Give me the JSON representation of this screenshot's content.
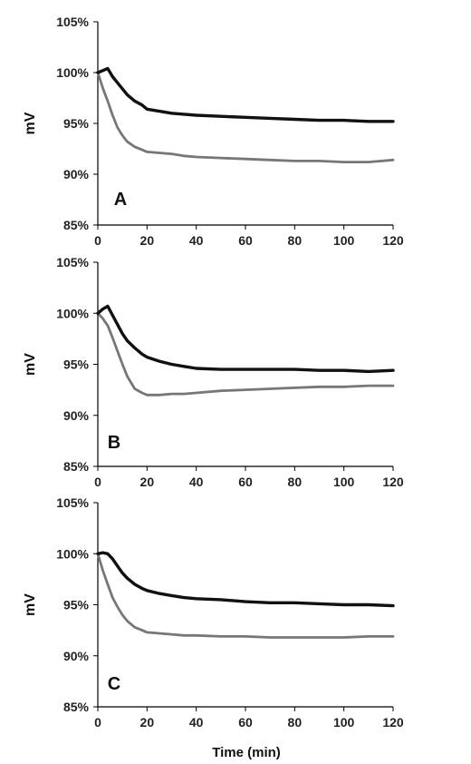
{
  "figure": {
    "xlabel": "Time (min)"
  },
  "chart_data": [
    {
      "type": "line",
      "panel_label": "A",
      "ylabel": "mV",
      "xlim": [
        0,
        120
      ],
      "ylim": [
        85,
        105
      ],
      "xticks": [
        0,
        20,
        40,
        60,
        80,
        100,
        120
      ],
      "yticks": [
        85,
        90,
        95,
        100,
        105
      ],
      "ytick_labels": [
        "85%",
        "90%",
        "95%",
        "100%",
        "105%"
      ],
      "grid": false,
      "series": [
        {
          "color": "#111111",
          "x": [
            0,
            2,
            4,
            6,
            8,
            10,
            12,
            15,
            18,
            20,
            25,
            30,
            35,
            40,
            50,
            60,
            70,
            80,
            90,
            100,
            110,
            120
          ],
          "y": [
            100,
            100.2,
            100.4,
            99.6,
            99.0,
            98.4,
            97.8,
            97.2,
            96.8,
            96.4,
            96.2,
            96.0,
            95.9,
            95.8,
            95.7,
            95.6,
            95.5,
            95.4,
            95.3,
            95.3,
            95.2,
            95.2
          ]
        },
        {
          "color": "#777777",
          "x": [
            0,
            2,
            4,
            6,
            8,
            10,
            12,
            15,
            18,
            20,
            25,
            30,
            35,
            40,
            50,
            60,
            70,
            80,
            90,
            100,
            110,
            120
          ],
          "y": [
            100,
            98.5,
            97.2,
            95.8,
            94.6,
            93.8,
            93.2,
            92.7,
            92.4,
            92.2,
            92.1,
            92.0,
            91.8,
            91.7,
            91.6,
            91.5,
            91.4,
            91.3,
            91.3,
            91.2,
            91.2,
            91.4
          ]
        }
      ]
    },
    {
      "type": "line",
      "panel_label": "B",
      "ylabel": "mV",
      "xlim": [
        0,
        120
      ],
      "ylim": [
        85,
        105
      ],
      "xticks": [
        0,
        20,
        40,
        60,
        80,
        100,
        120
      ],
      "yticks": [
        85,
        90,
        95,
        100,
        105
      ],
      "ytick_labels": [
        "85%",
        "90%",
        "95%",
        "100%",
        "105%"
      ],
      "grid": false,
      "series": [
        {
          "color": "#111111",
          "x": [
            0,
            2,
            4,
            6,
            8,
            10,
            12,
            15,
            18,
            20,
            25,
            30,
            35,
            40,
            50,
            60,
            70,
            80,
            90,
            100,
            110,
            120
          ],
          "y": [
            100,
            100.4,
            100.7,
            99.8,
            98.9,
            98.0,
            97.3,
            96.6,
            96.0,
            95.7,
            95.3,
            95.0,
            94.8,
            94.6,
            94.5,
            94.5,
            94.5,
            94.5,
            94.4,
            94.4,
            94.3,
            94.4
          ]
        },
        {
          "color": "#777777",
          "x": [
            0,
            2,
            4,
            6,
            8,
            10,
            12,
            15,
            18,
            20,
            25,
            30,
            35,
            40,
            50,
            60,
            70,
            80,
            90,
            100,
            110,
            120
          ],
          "y": [
            100,
            99.5,
            98.8,
            97.6,
            96.3,
            95.0,
            93.8,
            92.6,
            92.2,
            92.0,
            92.0,
            92.1,
            92.1,
            92.2,
            92.4,
            92.5,
            92.6,
            92.7,
            92.8,
            92.8,
            92.9,
            92.9
          ]
        }
      ]
    },
    {
      "type": "line",
      "panel_label": "C",
      "ylabel": "mV",
      "xlabel": "Time (min)",
      "xlim": [
        0,
        120
      ],
      "ylim": [
        85,
        105
      ],
      "xticks": [
        0,
        20,
        40,
        60,
        80,
        100,
        120
      ],
      "yticks": [
        85,
        90,
        95,
        100,
        105
      ],
      "ytick_labels": [
        "85%",
        "90%",
        "95%",
        "100%",
        "105%"
      ],
      "grid": false,
      "series": [
        {
          "color": "#111111",
          "x": [
            0,
            2,
            4,
            6,
            8,
            10,
            12,
            15,
            18,
            20,
            25,
            30,
            35,
            40,
            50,
            60,
            70,
            80,
            90,
            100,
            110,
            120
          ],
          "y": [
            100,
            100.1,
            100.0,
            99.5,
            98.8,
            98.1,
            97.6,
            97.0,
            96.6,
            96.4,
            96.1,
            95.9,
            95.7,
            95.6,
            95.5,
            95.3,
            95.2,
            95.2,
            95.1,
            95.0,
            95.0,
            94.9
          ]
        },
        {
          "color": "#777777",
          "x": [
            0,
            2,
            4,
            6,
            8,
            10,
            12,
            15,
            18,
            20,
            25,
            30,
            35,
            40,
            50,
            60,
            70,
            80,
            90,
            100,
            110,
            120
          ],
          "y": [
            100,
            98.4,
            97.0,
            95.7,
            94.8,
            94.0,
            93.4,
            92.8,
            92.5,
            92.3,
            92.2,
            92.1,
            92.0,
            92.0,
            91.9,
            91.9,
            91.8,
            91.8,
            91.8,
            91.8,
            91.9,
            91.9
          ]
        }
      ]
    }
  ]
}
